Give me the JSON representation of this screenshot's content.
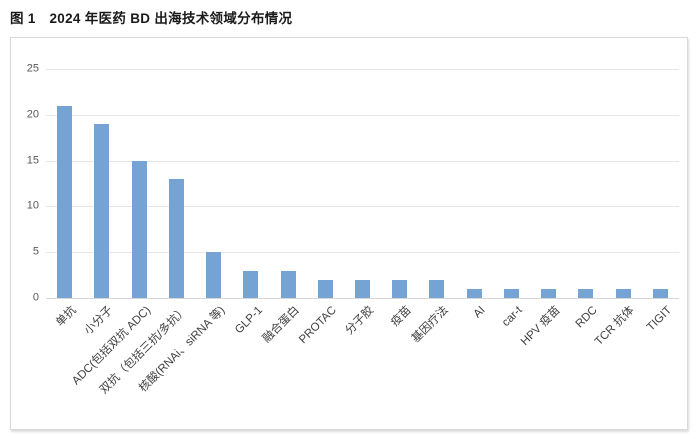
{
  "title": "图 1　2024 年医药 BD 出海技术领域分布情况",
  "chart_data": {
    "type": "bar",
    "title": "2024 年医药 BD 出海技术领域分布情况",
    "categories": [
      "单抗",
      "小分子",
      "ADC(包括双抗 ADC)",
      "双抗（包括三抗/多抗）",
      "核酸(RNAi、siRNA 等)",
      "GLP-1",
      "融合蛋白",
      "PROTAC",
      "分子胶",
      "疫苗",
      "基因疗法",
      "AI",
      "car-t",
      "HPV 疫苗",
      "RDC",
      "TCR 抗体",
      "TIGIT"
    ],
    "values": [
      21,
      19,
      15,
      13,
      5,
      3,
      3,
      2,
      2,
      2,
      2,
      1,
      1,
      1,
      1,
      1,
      1
    ],
    "xlabel": "",
    "ylabel": "",
    "ylim": [
      0,
      25
    ],
    "yticks": [
      0,
      5,
      10,
      15,
      20,
      25
    ],
    "grid": true,
    "legend": false,
    "bar_color": "#74a3d4",
    "grid_color": "#e7e7e7",
    "axis_line_color": "#d8d8d8",
    "ytick_color": "#595959",
    "xtick_color": "#3f3f3f"
  }
}
